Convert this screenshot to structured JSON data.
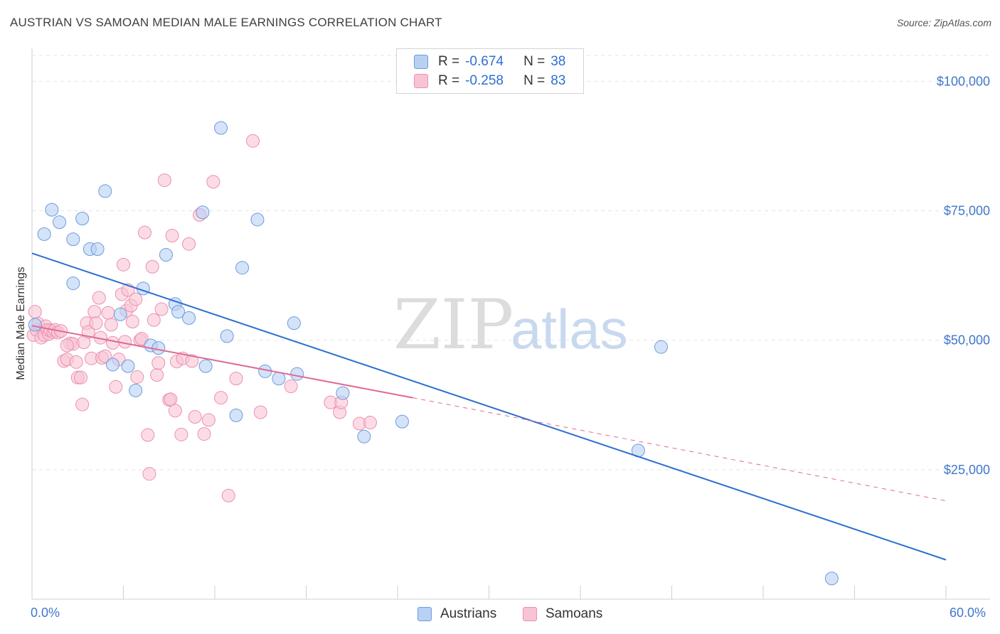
{
  "header": {
    "title": "AUSTRIAN VS SAMOAN MEDIAN MALE EARNINGS CORRELATION CHART",
    "source": "Source: ZipAtlas.com"
  },
  "watermark": {
    "zip": "ZIP",
    "atlas": "atlas"
  },
  "legend": {
    "r_label": "R =",
    "n_label": "N =",
    "austrians": {
      "r": "-0.674",
      "n": "38",
      "name": "Austrians"
    },
    "samoans": {
      "r": "-0.258",
      "n": "83",
      "name": "Samoans"
    }
  },
  "colors": {
    "austrians_fill": "#b8d0f2",
    "austrians_line": "#2d6fd1",
    "samoans_fill": "#f8c4d4",
    "samoans_line": "#e06a93",
    "tick_label": "#3f77cc"
  },
  "chart_data": {
    "type": "scatter",
    "title": "AUSTRIAN VS SAMOAN MEDIAN MALE EARNINGS CORRELATION CHART",
    "xlabel": "",
    "ylabel": "Median Male Earnings",
    "xlim": [
      0,
      60
    ],
    "ylim": [
      0,
      105000
    ],
    "x_tick_labels": [
      "0.0%",
      "60.0%"
    ],
    "y_ticks": [
      {
        "value": 25000,
        "label": "$25,000"
      },
      {
        "value": 50000,
        "label": "$50,000"
      },
      {
        "value": 75000,
        "label": "$75,000"
      },
      {
        "value": 100000,
        "label": "$100,000"
      }
    ],
    "grid": true,
    "legend_placement": "top-center",
    "series": [
      {
        "name": "Austrians",
        "r": -0.674,
        "n": 38,
        "trend": {
          "x0": 0,
          "y0": 66800,
          "x1": 60,
          "y1": 7600
        },
        "points": [
          [
            0.2,
            53000
          ],
          [
            0.8,
            70500
          ],
          [
            1.3,
            75200
          ],
          [
            1.8,
            72800
          ],
          [
            2.7,
            69500
          ],
          [
            3.3,
            73500
          ],
          [
            2.7,
            61000
          ],
          [
            3.8,
            67600
          ],
          [
            4.3,
            67600
          ],
          [
            4.8,
            78800
          ],
          [
            5.3,
            45300
          ],
          [
            5.8,
            55000
          ],
          [
            6.3,
            45000
          ],
          [
            6.8,
            40300
          ],
          [
            7.3,
            60000
          ],
          [
            7.8,
            49000
          ],
          [
            8.3,
            48500
          ],
          [
            8.8,
            66500
          ],
          [
            9.4,
            57000
          ],
          [
            9.6,
            55500
          ],
          [
            10.3,
            54300
          ],
          [
            11.2,
            74700
          ],
          [
            11.4,
            45000
          ],
          [
            12.4,
            91000
          ],
          [
            12.8,
            50800
          ],
          [
            13.4,
            35500
          ],
          [
            13.8,
            64000
          ],
          [
            14.8,
            73300
          ],
          [
            15.3,
            44000
          ],
          [
            16.2,
            42600
          ],
          [
            17.2,
            53300
          ],
          [
            17.4,
            43500
          ],
          [
            20.4,
            39800
          ],
          [
            21.8,
            31400
          ],
          [
            24.3,
            34300
          ],
          [
            39.8,
            28700
          ],
          [
            41.3,
            48700
          ],
          [
            52.5,
            4000
          ]
        ]
      },
      {
        "name": "Samoans",
        "r": -0.258,
        "n": 83,
        "trend": {
          "x0": 0,
          "y0": 52800,
          "x1": 25,
          "y1": 38900
        },
        "trend_extension": {
          "x0": 25,
          "y0": 38900,
          "x1": 60,
          "y1": 19000
        },
        "points": [
          [
            0.1,
            51000
          ],
          [
            0.2,
            55500
          ],
          [
            0.3,
            52000
          ],
          [
            0.4,
            53200
          ],
          [
            0.6,
            50500
          ],
          [
            0.8,
            51000
          ],
          [
            0.9,
            52700
          ],
          [
            1.0,
            52000
          ],
          [
            1.1,
            51200
          ],
          [
            1.2,
            51900
          ],
          [
            1.4,
            51600
          ],
          [
            1.5,
            52000
          ],
          [
            1.7,
            51500
          ],
          [
            1.9,
            51800
          ],
          [
            2.1,
            46000
          ],
          [
            2.3,
            46300
          ],
          [
            2.5,
            49400
          ],
          [
            2.7,
            49300
          ],
          [
            2.9,
            45800
          ],
          [
            3.0,
            42800
          ],
          [
            3.2,
            42800
          ],
          [
            3.3,
            37600
          ],
          [
            3.4,
            49600
          ],
          [
            3.6,
            53300
          ],
          [
            3.7,
            51600
          ],
          [
            3.9,
            46500
          ],
          [
            4.1,
            55500
          ],
          [
            4.2,
            53300
          ],
          [
            4.4,
            58200
          ],
          [
            4.5,
            50500
          ],
          [
            4.6,
            46600
          ],
          [
            4.8,
            46900
          ],
          [
            5.0,
            55300
          ],
          [
            5.2,
            53000
          ],
          [
            5.3,
            49500
          ],
          [
            5.5,
            41000
          ],
          [
            5.7,
            46300
          ],
          [
            5.9,
            58900
          ],
          [
            6.0,
            64600
          ],
          [
            6.2,
            55700
          ],
          [
            6.3,
            59700
          ],
          [
            6.5,
            56700
          ],
          [
            6.6,
            53600
          ],
          [
            6.8,
            57900
          ],
          [
            6.9,
            42900
          ],
          [
            7.1,
            50000
          ],
          [
            7.2,
            50300
          ],
          [
            7.4,
            70800
          ],
          [
            7.6,
            31700
          ],
          [
            7.7,
            24200
          ],
          [
            7.9,
            64200
          ],
          [
            8.0,
            53900
          ],
          [
            8.2,
            43300
          ],
          [
            8.3,
            45600
          ],
          [
            8.5,
            56000
          ],
          [
            8.7,
            80900
          ],
          [
            9.0,
            38500
          ],
          [
            9.2,
            70200
          ],
          [
            9.4,
            36400
          ],
          [
            9.5,
            45900
          ],
          [
            9.8,
            31800
          ],
          [
            9.9,
            46500
          ],
          [
            10.3,
            68600
          ],
          [
            10.5,
            46000
          ],
          [
            10.7,
            35200
          ],
          [
            11.0,
            74200
          ],
          [
            11.3,
            31900
          ],
          [
            11.6,
            34600
          ],
          [
            11.9,
            80600
          ],
          [
            12.4,
            38900
          ],
          [
            12.9,
            20000
          ],
          [
            13.4,
            42600
          ],
          [
            14.5,
            88500
          ],
          [
            15.0,
            36100
          ],
          [
            17.0,
            41100
          ],
          [
            19.6,
            38000
          ],
          [
            20.2,
            36100
          ],
          [
            20.3,
            38000
          ],
          [
            21.5,
            33900
          ],
          [
            22.2,
            34100
          ],
          [
            9.1,
            38600
          ],
          [
            6.1,
            49700
          ],
          [
            2.3,
            49000
          ]
        ]
      }
    ]
  }
}
